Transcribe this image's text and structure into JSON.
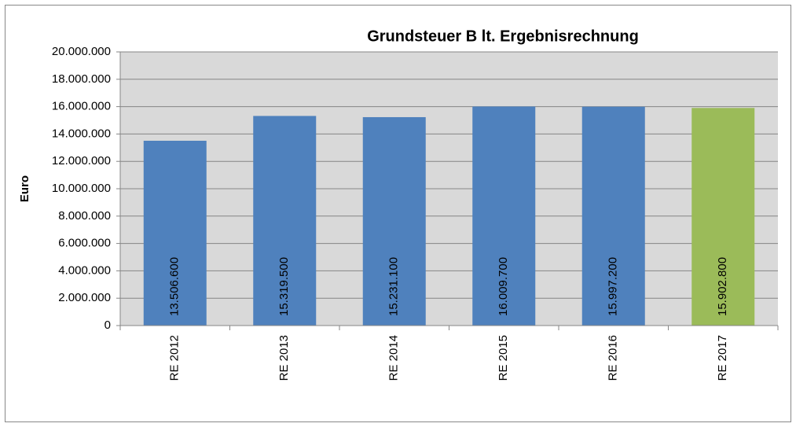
{
  "chart_data": {
    "type": "bar",
    "title": "Grundsteuer B  lt. Ergebnisrechnung",
    "y_label": "Euro",
    "categories": [
      "RE 2012",
      "RE 2013",
      "RE 2014",
      "RE 2015",
      "RE 2016",
      "RE 2017"
    ],
    "values": [
      13506600,
      15319500,
      15231100,
      16009700,
      15997200,
      15902800
    ],
    "value_labels": [
      "13.506.600",
      "15.319.500",
      "15.231.100",
      "16.009.700",
      "15.997.200",
      "15.902.800"
    ],
    "colors": [
      "#4f81bd",
      "#4f81bd",
      "#4f81bd",
      "#4f81bd",
      "#4f81bd",
      "#9bbb59"
    ],
    "ylim": [
      0,
      20000000
    ],
    "yticks": [
      {
        "value": 0,
        "label": "0"
      },
      {
        "value": 2000000,
        "label": "2.000.000"
      },
      {
        "value": 4000000,
        "label": "4.000.000"
      },
      {
        "value": 6000000,
        "label": "6.000.000"
      },
      {
        "value": 8000000,
        "label": "8.000.000"
      },
      {
        "value": 10000000,
        "label": "10.000.000"
      },
      {
        "value": 12000000,
        "label": "12.000.000"
      },
      {
        "value": 14000000,
        "label": "14.000.000"
      },
      {
        "value": 16000000,
        "label": "16.000.000"
      },
      {
        "value": 18000000,
        "label": "18.000.000"
      },
      {
        "value": 20000000,
        "label": "20.000.000"
      }
    ],
    "grid": true
  }
}
